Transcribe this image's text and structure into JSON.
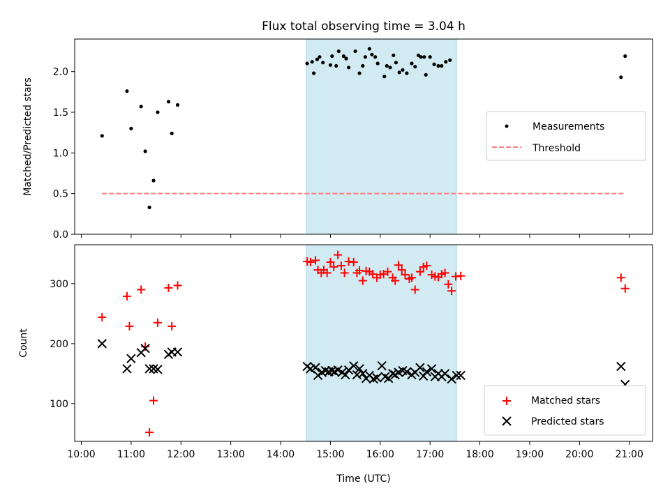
{
  "title": "Flux total observing time = 3.04 h",
  "colors": {
    "measurement": "#000000",
    "threshold": "#ff7f7f",
    "matched": "#ff0000",
    "predicted": "#000000",
    "span_fill": "#add8e6"
  },
  "chart_data": [
    {
      "type": "scatter",
      "xlabel": "",
      "ylabel": "Matched/Predicted stars",
      "xlim": [
        "09:52",
        "21:28"
      ],
      "ylim": [
        0,
        2.4
      ],
      "yticks": [
        "0.0",
        "0.5",
        "1.0",
        "1.5",
        "2.0"
      ],
      "legend_position": "center-right",
      "shaded_span": [
        "14:31",
        "17:32"
      ],
      "series": [
        {
          "name": "Measurements",
          "points": [
            [
              "10:25",
              1.21
            ],
            [
              "10:55",
              1.76
            ],
            [
              "11:00",
              1.3
            ],
            [
              "11:12",
              1.57
            ],
            [
              "11:17",
              1.02
            ],
            [
              "11:22",
              0.33
            ],
            [
              "11:27",
              0.66
            ],
            [
              "11:32",
              1.5
            ],
            [
              "11:45",
              1.63
            ],
            [
              "11:49",
              1.24
            ],
            [
              "11:56",
              1.59
            ],
            [
              "14:32",
              2.1
            ],
            [
              "14:38",
              2.12
            ],
            [
              "14:40",
              1.98
            ],
            [
              "14:44",
              2.15
            ],
            [
              "14:47",
              2.18
            ],
            [
              "14:51",
              2.11
            ],
            [
              "15:00",
              2.08
            ],
            [
              "15:02",
              2.19
            ],
            [
              "15:07",
              2.07
            ],
            [
              "15:10",
              2.25
            ],
            [
              "15:16",
              2.19
            ],
            [
              "15:19",
              2.16
            ],
            [
              "15:22",
              2.05
            ],
            [
              "15:30",
              2.25
            ],
            [
              "15:35",
              1.98
            ],
            [
              "15:39",
              2.07
            ],
            [
              "15:42",
              2.18
            ],
            [
              "15:47",
              2.28
            ],
            [
              "15:50",
              2.21
            ],
            [
              "15:54",
              2.18
            ],
            [
              "15:57",
              2.1
            ],
            [
              "16:05",
              1.94
            ],
            [
              "16:08",
              2.07
            ],
            [
              "16:12",
              2.05
            ],
            [
              "16:16",
              2.2
            ],
            [
              "16:19",
              2.11
            ],
            [
              "16:23",
              1.99
            ],
            [
              "16:27",
              2.02
            ],
            [
              "16:32",
              1.98
            ],
            [
              "16:38",
              2.1
            ],
            [
              "16:42",
              2.06
            ],
            [
              "16:46",
              2.2
            ],
            [
              "16:49",
              2.18
            ],
            [
              "16:53",
              2.18
            ],
            [
              "16:55",
              1.96
            ],
            [
              "17:00",
              2.18
            ],
            [
              "17:05",
              2.09
            ],
            [
              "17:10",
              2.07
            ],
            [
              "17:14",
              2.07
            ],
            [
              "17:19",
              2.12
            ],
            [
              "17:24",
              2.14
            ],
            [
              "20:50",
              1.93
            ],
            [
              "20:55",
              2.19
            ]
          ]
        },
        {
          "name": "Threshold",
          "style": "dashed",
          "points": [
            [
              "10:25",
              0.5
            ],
            [
              "20:55",
              0.5
            ]
          ]
        }
      ]
    },
    {
      "type": "scatter",
      "xlabel": "Time (UTC)",
      "ylabel": "Count",
      "xlim": [
        "09:52",
        "21:28"
      ],
      "ylim": [
        37,
        365
      ],
      "yticks": [
        "100",
        "200",
        "300"
      ],
      "xticks": [
        "10:00",
        "11:00",
        "12:00",
        "13:00",
        "14:00",
        "15:00",
        "16:00",
        "17:00",
        "18:00",
        "19:00",
        "20:00",
        "21:00"
      ],
      "legend_position": "bottom-right",
      "shaded_span": [
        "14:31",
        "17:32"
      ],
      "series": [
        {
          "name": "Matched stars",
          "marker": "plus",
          "points": [
            [
              "10:25",
              244
            ],
            [
              "10:55",
              279
            ],
            [
              "10:58",
              229
            ],
            [
              "11:12",
              290
            ],
            [
              "11:17",
              195
            ],
            [
              "11:22",
              52
            ],
            [
              "11:27",
              105
            ],
            [
              "11:32",
              235
            ],
            [
              "11:45",
              293
            ],
            [
              "11:49",
              229
            ],
            [
              "11:56",
              297
            ],
            [
              "14:32",
              337
            ],
            [
              "14:36",
              336
            ],
            [
              "14:42",
              339
            ],
            [
              "14:45",
              323
            ],
            [
              "14:49",
              318
            ],
            [
              "14:52",
              323
            ],
            [
              "14:56",
              318
            ],
            [
              "15:00",
              336
            ],
            [
              "15:04",
              328
            ],
            [
              "15:09",
              348
            ],
            [
              "15:13",
              330
            ],
            [
              "15:17",
              318
            ],
            [
              "15:22",
              337
            ],
            [
              "15:28",
              336
            ],
            [
              "15:32",
              318
            ],
            [
              "15:35",
              322
            ],
            [
              "15:39",
              305
            ],
            [
              "15:43",
              321
            ],
            [
              "15:47",
              320
            ],
            [
              "15:51",
              316
            ],
            [
              "15:56",
              310
            ],
            [
              "16:00",
              315
            ],
            [
              "16:04",
              316
            ],
            [
              "16:09",
              320
            ],
            [
              "16:15",
              310
            ],
            [
              "16:18",
              305
            ],
            [
              "16:22",
              331
            ],
            [
              "16:26",
              323
            ],
            [
              "16:30",
              315
            ],
            [
              "16:35",
              308
            ],
            [
              "16:38",
              310
            ],
            [
              "16:42",
              290
            ],
            [
              "16:48",
              320
            ],
            [
              "16:52",
              328
            ],
            [
              "16:56",
              330
            ],
            [
              "17:02",
              315
            ],
            [
              "17:06",
              312
            ],
            [
              "17:10",
              311
            ],
            [
              "17:14",
              316
            ],
            [
              "17:18",
              318
            ],
            [
              "17:22",
              299
            ],
            [
              "17:26",
              288
            ],
            [
              "17:31",
              312
            ],
            [
              "17:37",
              313
            ],
            [
              "20:50",
              310
            ],
            [
              "20:55",
              292
            ]
          ]
        },
        {
          "name": "Predicted stars",
          "marker": "x",
          "points": [
            [
              "10:25",
              200
            ],
            [
              "10:55",
              158
            ],
            [
              "11:00",
              175
            ],
            [
              "11:12",
              185
            ],
            [
              "11:17",
              192
            ],
            [
              "11:22",
              158
            ],
            [
              "11:27",
              158
            ],
            [
              "11:32",
              157
            ],
            [
              "11:45",
              182
            ],
            [
              "11:49",
              186
            ],
            [
              "11:56",
              186
            ],
            [
              "14:32",
              162
            ],
            [
              "14:36",
              158
            ],
            [
              "14:42",
              160
            ],
            [
              "14:45",
              147
            ],
            [
              "14:50",
              152
            ],
            [
              "14:54",
              155
            ],
            [
              "14:58",
              153
            ],
            [
              "15:02",
              155
            ],
            [
              "15:05",
              153
            ],
            [
              "15:09",
              156
            ],
            [
              "15:14",
              152
            ],
            [
              "15:18",
              148
            ],
            [
              "15:22",
              156
            ],
            [
              "15:28",
              163
            ],
            [
              "15:32",
              148
            ],
            [
              "15:35",
              158
            ],
            [
              "15:39",
              150
            ],
            [
              "15:43",
              142
            ],
            [
              "15:47",
              147
            ],
            [
              "15:52",
              141
            ],
            [
              "15:56",
              143
            ],
            [
              "16:02",
              163
            ],
            [
              "16:06",
              145
            ],
            [
              "16:10",
              142
            ],
            [
              "16:15",
              150
            ],
            [
              "16:18",
              148
            ],
            [
              "16:22",
              152
            ],
            [
              "16:27",
              155
            ],
            [
              "16:32",
              153
            ],
            [
              "16:38",
              148
            ],
            [
              "16:42",
              152
            ],
            [
              "16:48",
              160
            ],
            [
              "16:52",
              146
            ],
            [
              "16:56",
              153
            ],
            [
              "17:02",
              158
            ],
            [
              "17:06",
              145
            ],
            [
              "17:10",
              150
            ],
            [
              "17:14",
              145
            ],
            [
              "17:18",
              150
            ],
            [
              "17:26",
              141
            ],
            [
              "17:32",
              147
            ],
            [
              "17:37",
              147
            ],
            [
              "20:50",
              162
            ],
            [
              "20:55",
              132
            ]
          ]
        }
      ]
    }
  ]
}
